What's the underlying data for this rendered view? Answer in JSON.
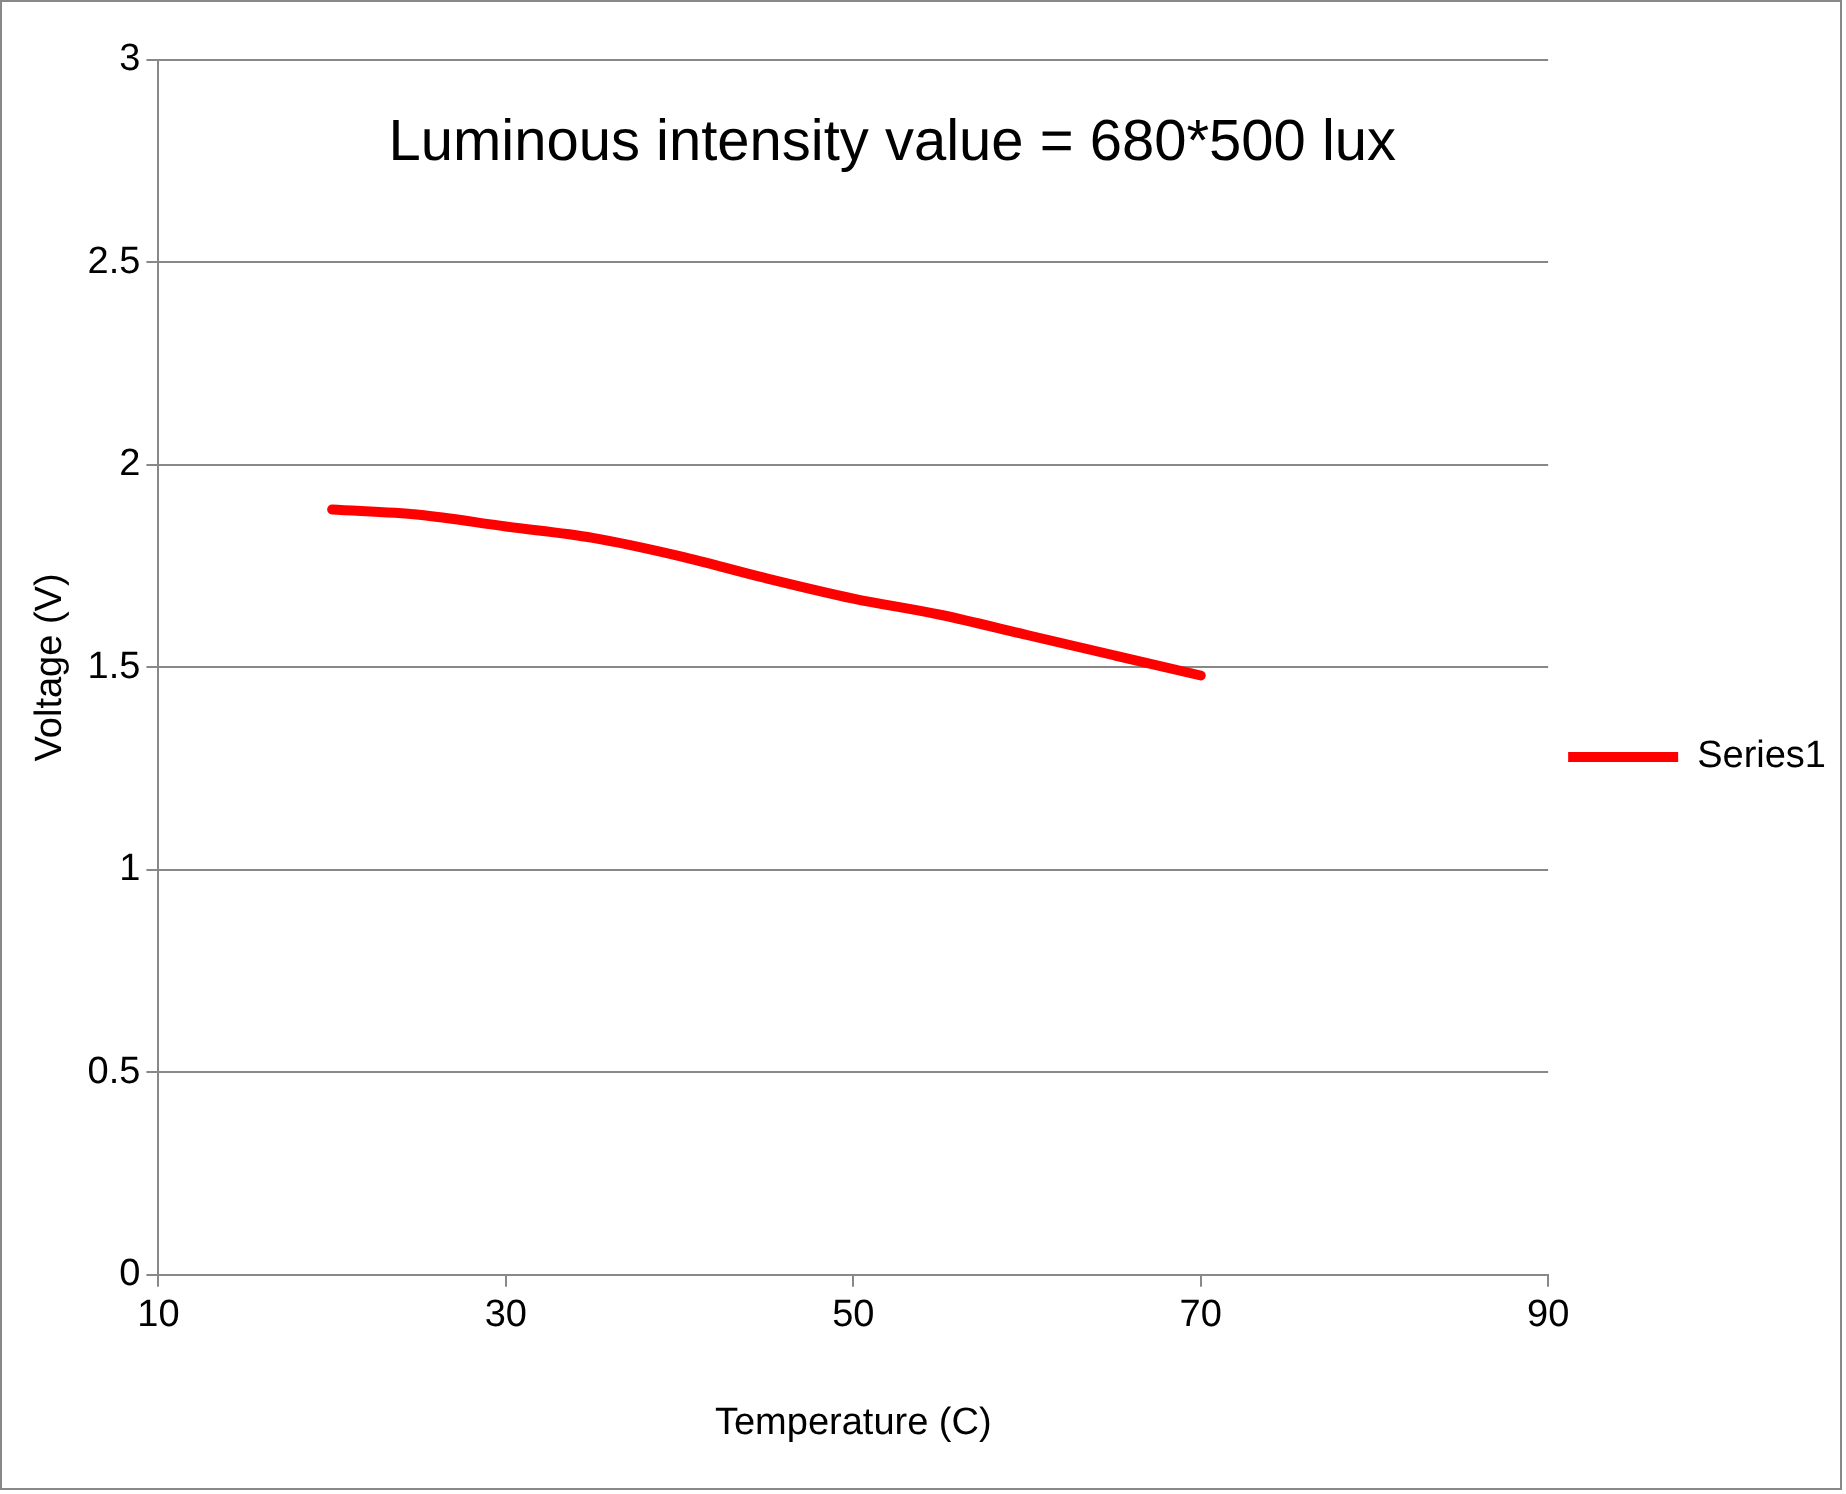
{
  "chart_data": {
    "type": "line",
    "xlabel": "Temperature (C)",
    "ylabel": "Voltage (V)",
    "annotations": [
      "Luminous intensity value = 680*500 lux"
    ],
    "x": [
      20,
      25,
      30,
      35,
      40,
      45,
      50,
      55,
      60,
      65,
      70
    ],
    "series": [
      {
        "name": "Series1",
        "color": "#ff0000",
        "values": [
          1.89,
          1.877,
          1.848,
          1.82,
          1.775,
          1.72,
          1.67,
          1.63,
          1.58,
          1.53,
          1.48
        ]
      }
    ],
    "xlim": [
      10,
      90
    ],
    "xticks": [
      10,
      30,
      50,
      70,
      90
    ],
    "ylim": [
      0,
      3
    ],
    "yticks": [
      0,
      0.5,
      1,
      1.5,
      2,
      2.5,
      3
    ],
    "grid": "y",
    "legend": "right",
    "marker": "none",
    "line_style": "solid"
  }
}
